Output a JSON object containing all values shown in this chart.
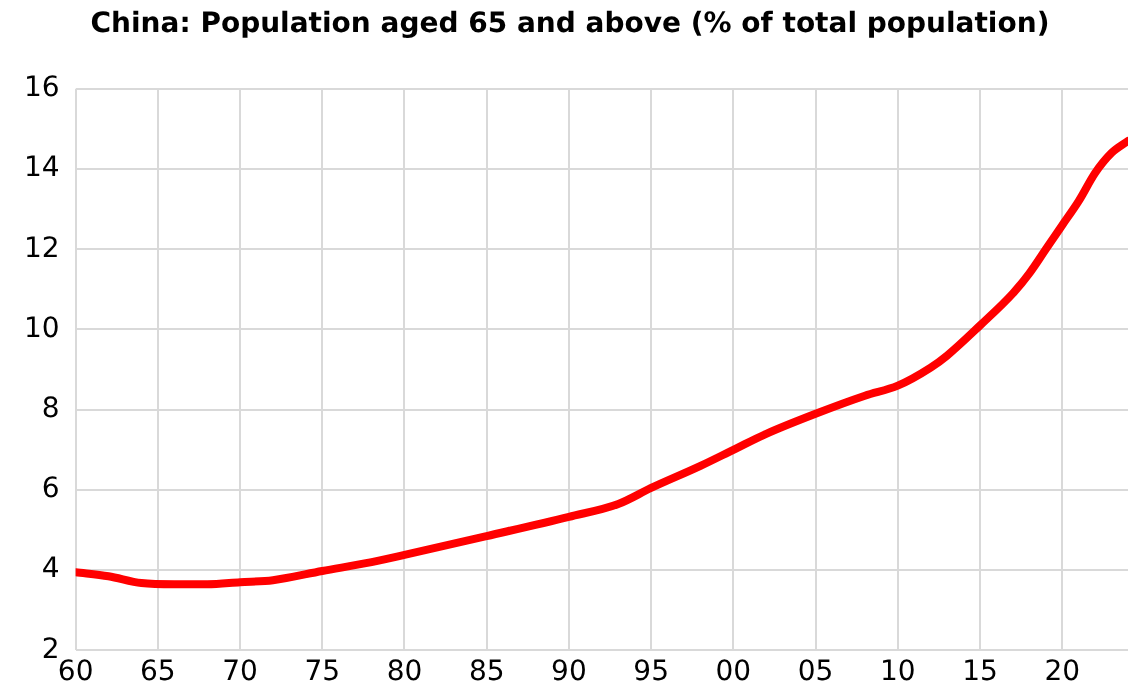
{
  "chart_data": {
    "type": "line",
    "title": "China: Population aged 65 and above (% of total population)",
    "x": [
      1960,
      1962,
      1964,
      1966,
      1968,
      1970,
      1972,
      1975,
      1978,
      1980,
      1985,
      1990,
      1993,
      1995,
      1998,
      2000,
      2002,
      2005,
      2008,
      2010,
      2012,
      2013,
      2015,
      2017,
      2018,
      2019,
      2020,
      2021,
      2022,
      2023,
      2024
    ],
    "series": [
      {
        "color": "#ff0000",
        "values": [
          3.95,
          3.85,
          3.68,
          3.65,
          3.65,
          3.7,
          3.75,
          3.98,
          4.2,
          4.38,
          4.85,
          5.33,
          5.65,
          6.05,
          6.6,
          7.0,
          7.4,
          7.9,
          8.35,
          8.6,
          9.05,
          9.35,
          10.1,
          10.9,
          11.4,
          12.0,
          12.6,
          13.2,
          13.9,
          14.4,
          14.7
        ]
      }
    ],
    "xlim": [
      1960,
      2024
    ],
    "xticks": [
      {
        "value": 1960,
        "label": "60"
      },
      {
        "value": 1965,
        "label": "65"
      },
      {
        "value": 1970,
        "label": "70"
      },
      {
        "value": 1975,
        "label": "75"
      },
      {
        "value": 1980,
        "label": "80"
      },
      {
        "value": 1985,
        "label": "85"
      },
      {
        "value": 1990,
        "label": "90"
      },
      {
        "value": 1995,
        "label": "95"
      },
      {
        "value": 2000,
        "label": "00"
      },
      {
        "value": 2005,
        "label": "05"
      },
      {
        "value": 2010,
        "label": "10"
      },
      {
        "value": 2015,
        "label": "15"
      },
      {
        "value": 2020,
        "label": "20"
      }
    ],
    "ylim": [
      2,
      16
    ],
    "yticks": [
      2,
      4,
      6,
      8,
      10,
      12,
      14,
      16
    ],
    "grid": true,
    "legend": false,
    "marker": "none",
    "line_style": "solid"
  }
}
